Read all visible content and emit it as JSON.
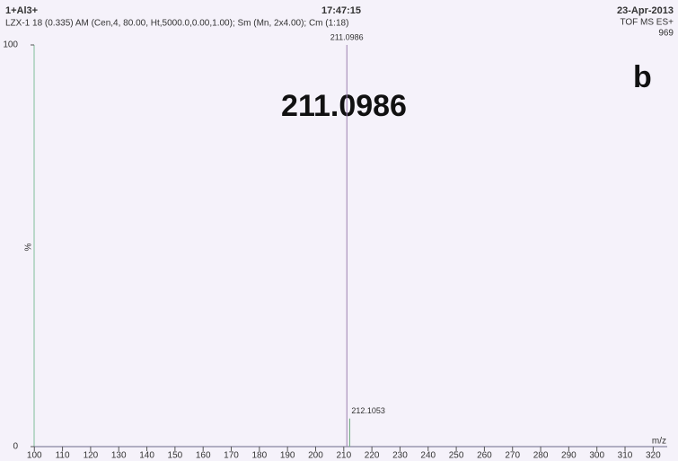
{
  "header": {
    "sample": "1+Al3+",
    "time": "17:47:15",
    "date": "23-Apr-2013",
    "acquisition": "LZX-1 18 (0.335) AM (Cen,4, 80.00, Ht,5000.0,0.00,1.00); Sm (Mn, 2x4.00); Cm (1:18)",
    "mode": "TOF MS ES+",
    "intensity": "969"
  },
  "chart_data": {
    "type": "stick",
    "annotation": "211.0986",
    "panel_label": "b",
    "ylabel": "%",
    "xlabel": "m/z",
    "x": [
      211.0986,
      212.1053
    ],
    "values": [
      100,
      7
    ],
    "color": "#9a7fb0",
    "xlim": [
      98,
      325
    ],
    "xticks": [
      100,
      110,
      120,
      130,
      140,
      150,
      160,
      170,
      180,
      190,
      200,
      210,
      220,
      230,
      240,
      250,
      260,
      270,
      280,
      290,
      300,
      310,
      320
    ],
    "ylim": [
      0,
      100
    ],
    "yticks": [
      0,
      100
    ]
  }
}
